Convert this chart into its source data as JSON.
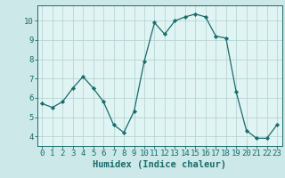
{
  "x": [
    0,
    1,
    2,
    3,
    4,
    5,
    6,
    7,
    8,
    9,
    10,
    11,
    12,
    13,
    14,
    15,
    16,
    17,
    18,
    19,
    20,
    21,
    22,
    23
  ],
  "y": [
    5.7,
    5.5,
    5.8,
    6.5,
    7.1,
    6.5,
    5.8,
    4.6,
    4.2,
    5.3,
    7.9,
    9.9,
    9.3,
    10.0,
    10.2,
    10.35,
    10.2,
    9.2,
    9.1,
    6.3,
    4.3,
    3.9,
    3.9,
    4.6
  ],
  "line_color": "#1a6b6b",
  "marker_color": "#1a6b6b",
  "bg_color": "#cce8e8",
  "grid_color": "#b8d4d4",
  "xlabel": "Humidex (Indice chaleur)",
  "xlim": [
    -0.5,
    23.5
  ],
  "ylim": [
    3.5,
    10.8
  ],
  "yticks": [
    4,
    5,
    6,
    7,
    8,
    9,
    10
  ],
  "xticks": [
    0,
    1,
    2,
    3,
    4,
    5,
    6,
    7,
    8,
    9,
    10,
    11,
    12,
    13,
    14,
    15,
    16,
    17,
    18,
    19,
    20,
    21,
    22,
    23
  ],
  "tick_color": "#1a6b6b",
  "axis_bg_color": "#e0f4f4",
  "label_fontsize": 7.5,
  "tick_fontsize": 6.5
}
